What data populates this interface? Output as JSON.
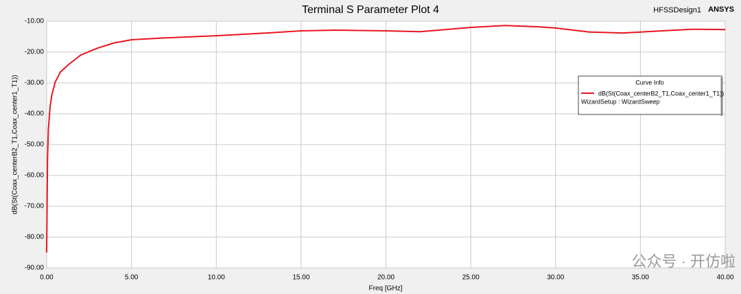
{
  "chart_data": {
    "type": "line",
    "title": "Terminal S Parameter Plot 4",
    "design_name": "HFSSDesign1",
    "brand": "ANSYS",
    "x_label": "Freq [GHz]",
    "y_label": "dB(St(Coax_centerB2_T1,Coax_center1_T1))",
    "legend_title": "Curve Info",
    "legend_subtitle": "WizardSetup : WizardSweep",
    "watermark": "公众号 · 开仿啦",
    "x": [
      0,
      0.05,
      0.1,
      0.2,
      0.3,
      0.5,
      0.8,
      1.3,
      2,
      3,
      4,
      5,
      7,
      10,
      13,
      15,
      17,
      20,
      22,
      25,
      27,
      29,
      30,
      32,
      34,
      36,
      38,
      40
    ],
    "series": [
      {
        "name": "dB(St(Coax_centerB2_T1,Coax_center1_T1))",
        "color": "#e8141e",
        "values": [
          -85,
          -55,
          -45,
          -38,
          -34,
          -29.8,
          -26.5,
          -24,
          -21,
          -18.7,
          -17,
          -16,
          -15.4,
          -14.7,
          -13.8,
          -13.1,
          -12.9,
          -13.1,
          -13.4,
          -12,
          -11.4,
          -11.8,
          -12.2,
          -13.5,
          -13.8,
          -13.2,
          -12.6,
          -12.7
        ]
      }
    ],
    "xlim": [
      0,
      40
    ],
    "ylim": [
      -90,
      -10
    ],
    "xticks": [
      {
        "value": 0,
        "label": "0.00"
      },
      {
        "value": 5,
        "label": "5.00"
      },
      {
        "value": 10,
        "label": "10.00"
      },
      {
        "value": 15,
        "label": "15.00"
      },
      {
        "value": 20,
        "label": "20.00"
      },
      {
        "value": 25,
        "label": "25.00"
      },
      {
        "value": 30,
        "label": "30.00"
      },
      {
        "value": 35,
        "label": "35.00"
      },
      {
        "value": 40,
        "label": "40.00"
      }
    ],
    "yticks": [
      {
        "value": -90,
        "label": "-90.00"
      },
      {
        "value": -80,
        "label": "-80.00"
      },
      {
        "value": -70,
        "label": "-70.00"
      },
      {
        "value": -60,
        "label": "-60.00"
      },
      {
        "value": -50,
        "label": "-50.00"
      },
      {
        "value": -40,
        "label": "-40.00"
      },
      {
        "value": -30,
        "label": "-30.00"
      },
      {
        "value": -20,
        "label": "-20.00"
      },
      {
        "value": -10,
        "label": "-10.00"
      }
    ],
    "grid": true
  }
}
